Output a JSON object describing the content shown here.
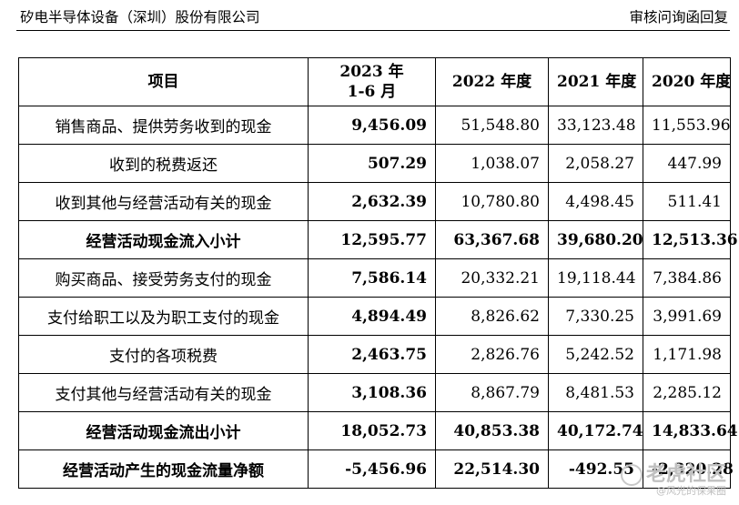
{
  "header": {
    "left": "矽电半导体设备（深圳）股份有限公司",
    "right": "审核问询函回复"
  },
  "table": {
    "columns": [
      "项目",
      "2023 年\n1-6 月",
      "2022 年度",
      "2021 年度",
      "2020 年度"
    ],
    "rows": [
      {
        "item": "销售商品、提供劳务收到的现金",
        "v2023h1": "9,456.09",
        "v2022": "51,548.80",
        "v2021": "33,123.48",
        "v2020": "11,553.96"
      },
      {
        "item": "收到的税费返还",
        "v2023h1": "507.29",
        "v2022": "1,038.07",
        "v2021": "2,058.27",
        "v2020": "447.99"
      },
      {
        "item": "收到其他与经营活动有关的现金",
        "v2023h1": "2,632.39",
        "v2022": "10,780.80",
        "v2021": "4,498.45",
        "v2020": "511.41"
      },
      {
        "item": "经营活动现金流入小计",
        "v2023h1": "12,595.77",
        "v2022": "63,367.68",
        "v2021": "39,680.20",
        "v2020": "12,513.36"
      },
      {
        "item": "购买商品、接受劳务支付的现金",
        "v2023h1": "7,586.14",
        "v2022": "20,332.21",
        "v2021": "19,118.44",
        "v2020": "7,384.86"
      },
      {
        "item": "支付给职工以及为职工支付的现金",
        "v2023h1": "4,894.49",
        "v2022": "8,826.62",
        "v2021": "7,330.25",
        "v2020": "3,991.69"
      },
      {
        "item": "支付的各项税费",
        "v2023h1": "2,463.75",
        "v2022": "2,826.76",
        "v2021": "5,242.52",
        "v2020": "1,171.98"
      },
      {
        "item": "支付其他与经营活动有关的现金",
        "v2023h1": "3,108.36",
        "v2022": "8,867.79",
        "v2021": "8,481.53",
        "v2020": "2,285.12"
      },
      {
        "item": "经营活动现金流出小计",
        "v2023h1": "18,052.73",
        "v2022": "40,853.38",
        "v2021": "40,172.74",
        "v2020": "14,833.64"
      },
      {
        "item": "经营活动产生的现金流量净额",
        "v2023h1": "-5,456.96",
        "v2022": "22,514.30",
        "v2021": "-492.55",
        "v2020": "-2,320.28"
      }
    ]
  },
  "watermark": {
    "title": "老虎社区",
    "subtitle": "@风光的保果圈"
  }
}
